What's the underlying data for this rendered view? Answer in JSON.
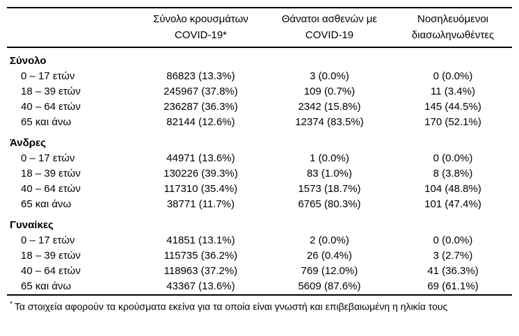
{
  "table": {
    "header": {
      "cases": {
        "line1": "Σύνολο κρουσμάτων",
        "line2": "COVID-19*"
      },
      "deaths": {
        "line1": "Θάνατοι ασθενών με",
        "line2": "COVID-19"
      },
      "intubated": {
        "line1": "Νοσηλευόμενοι",
        "line2": "διασωληνωθέντες"
      }
    },
    "sections": [
      {
        "label": "Σύνολο",
        "rows": [
          {
            "age": "0 – 17 ετών",
            "cases": "86823 (13.3%)",
            "deaths": "3 (0.0%)",
            "intubated": "0 (0.0%)"
          },
          {
            "age": "18 – 39 ετών",
            "cases": "245967 (37.8%)",
            "deaths": "109 (0.7%)",
            "intubated": "11 (3.4%)"
          },
          {
            "age": "40 – 64 ετών",
            "cases": "236287 (36.3%)",
            "deaths": "2342 (15.8%)",
            "intubated": "145 (44.5%)"
          },
          {
            "age": "65 και άνω",
            "cases": "82144 (12.6%)",
            "deaths": "12374 (83.5%)",
            "intubated": "170 (52.1%)"
          }
        ]
      },
      {
        "label": "Άνδρες",
        "rows": [
          {
            "age": "0 – 17 ετών",
            "cases": "44971 (13.6%)",
            "deaths": "1 (0.0%)",
            "intubated": "0 (0.0%)"
          },
          {
            "age": "18 – 39 ετών",
            "cases": "130226 (39.3%)",
            "deaths": "83 (1.0%)",
            "intubated": "8 (3.8%)"
          },
          {
            "age": "40 – 64 ετών",
            "cases": "117310 (35.4%)",
            "deaths": "1573 (18.7%)",
            "intubated": "104 (48.8%)"
          },
          {
            "age": "65 και άνω",
            "cases": "38771 (11.7%)",
            "deaths": "6765 (80.3%)",
            "intubated": "101 (47.4%)"
          }
        ]
      },
      {
        "label": "Γυναίκες",
        "rows": [
          {
            "age": "0 – 17 ετών",
            "cases": "41851 (13.1%)",
            "deaths": "2 (0.0%)",
            "intubated": "0 (0.0%)"
          },
          {
            "age": "18 – 39 ετών",
            "cases": "115735 (36.2%)",
            "deaths": "26 (0.4%)",
            "intubated": "3 (2.7%)"
          },
          {
            "age": "40 – 64 ετών",
            "cases": "118963 (37.2%)",
            "deaths": "769 (12.0%)",
            "intubated": "41 (36.3%)"
          },
          {
            "age": "65 και άνω",
            "cases": "43367 (13.6%)",
            "deaths": "5609 (87.6%)",
            "intubated": "69 (61.1%)"
          }
        ]
      }
    ]
  },
  "footnote": {
    "marker": "*",
    "text": "Τα στοιχεία αφορούν τα κρούσματα εκείνα για τα οποία είναι γνωστή και επιβεβαιωμένη η ηλικία τους"
  }
}
